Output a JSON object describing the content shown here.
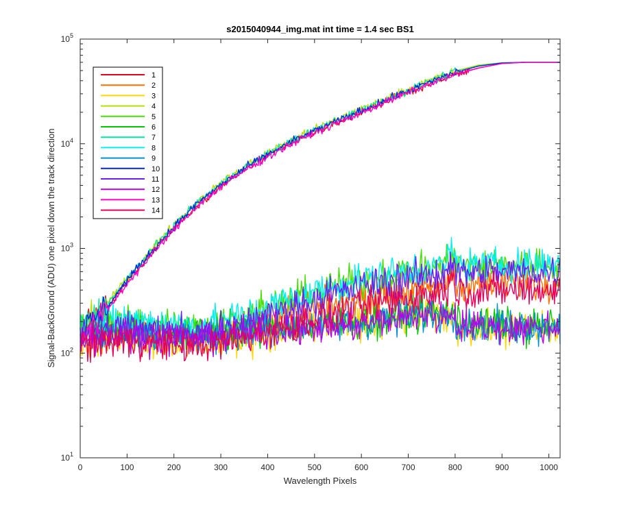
{
  "chart_data": {
    "type": "line",
    "title": "s2015040944_img.mat int time = 1.4 sec   BS1",
    "xlabel": "Wavelength Pixels",
    "ylabel": "Signal-BackGround (ADU) one pixel down the track direction",
    "xlim": [
      0,
      1024
    ],
    "ylim": [
      10,
      100000
    ],
    "yscale": "log",
    "x_ticks": [
      0,
      100,
      200,
      300,
      400,
      500,
      600,
      700,
      800,
      900,
      1000
    ],
    "y_ticks": [
      {
        "value": 10,
        "base": "10",
        "exp": "1"
      },
      {
        "value": 100,
        "base": "10",
        "exp": "2"
      },
      {
        "value": 1000,
        "base": "10",
        "exp": "3"
      },
      {
        "value": 10000,
        "base": "10",
        "exp": "4"
      },
      {
        "value": 100000,
        "base": "10",
        "exp": "5"
      }
    ],
    "grid": false,
    "legend_position": "top-left",
    "series": [
      {
        "name": "1",
        "color": "#e6001a",
        "group": "bright",
        "x": [
          0,
          50,
          100,
          150,
          200,
          250,
          300,
          350,
          400,
          450,
          500,
          550,
          600,
          650,
          700,
          750,
          800,
          850,
          900,
          950,
          1024
        ],
        "y": [
          150,
          240,
          480,
          880,
          1550,
          2600,
          3900,
          5600,
          7600,
          10000,
          12800,
          16000,
          20000,
          25000,
          31000,
          38000,
          46000,
          53000,
          58500,
          60000,
          60000
        ]
      },
      {
        "name": "2",
        "color": "#ff6f00",
        "group": "dim",
        "x": [
          0,
          50,
          100,
          150,
          200,
          250,
          300,
          350,
          400,
          450,
          500,
          550,
          600,
          650,
          700,
          750,
          800,
          850,
          900,
          950,
          1024
        ],
        "y": [
          140,
          150,
          150,
          150,
          140,
          140,
          150,
          170,
          200,
          230,
          260,
          290,
          320,
          360,
          390,
          420,
          440,
          460,
          470,
          470,
          480
        ]
      },
      {
        "name": "3",
        "color": "#ffd700",
        "group": "dim",
        "x": [
          0,
          50,
          100,
          150,
          200,
          250,
          300,
          350,
          400,
          450,
          500,
          550,
          600,
          650,
          700,
          750,
          800,
          850,
          900,
          950,
          1024
        ],
        "y": [
          130,
          140,
          140,
          130,
          125,
          120,
          130,
          140,
          150,
          160,
          170,
          175,
          185,
          200,
          215,
          235,
          180,
          175,
          170,
          170,
          165
        ]
      },
      {
        "name": "4",
        "color": "#b4e000",
        "group": "bright",
        "x": [
          0,
          50,
          100,
          150,
          200,
          250,
          300,
          350,
          400,
          450,
          500,
          550,
          600,
          650,
          700,
          750,
          800,
          850,
          900,
          950,
          1024
        ],
        "y": [
          170,
          270,
          520,
          950,
          1700,
          2800,
          4200,
          6000,
          8200,
          10800,
          13800,
          17200,
          21500,
          26800,
          33000,
          41000,
          49500,
          56500,
          59500,
          60000,
          60000
        ]
      },
      {
        "name": "5",
        "color": "#44e000",
        "group": "dim",
        "x": [
          0,
          50,
          100,
          150,
          200,
          250,
          300,
          350,
          400,
          450,
          500,
          550,
          600,
          650,
          700,
          750,
          800,
          850,
          900,
          950,
          1024
        ],
        "y": [
          190,
          200,
          200,
          195,
          185,
          180,
          195,
          225,
          270,
          320,
          380,
          440,
          500,
          560,
          610,
          650,
          680,
          690,
          700,
          700,
          700
        ]
      },
      {
        "name": "6",
        "color": "#00c800",
        "group": "dim",
        "x": [
          0,
          50,
          100,
          150,
          200,
          250,
          300,
          350,
          400,
          450,
          500,
          550,
          600,
          650,
          700,
          750,
          800,
          850,
          900,
          950,
          1024
        ],
        "y": [
          160,
          170,
          170,
          165,
          155,
          150,
          160,
          170,
          175,
          180,
          185,
          190,
          200,
          215,
          230,
          250,
          195,
          190,
          185,
          185,
          185
        ]
      },
      {
        "name": "7",
        "color": "#00e89a",
        "group": "bright",
        "x": [
          0,
          50,
          100,
          150,
          200,
          250,
          300,
          350,
          400,
          450,
          500,
          550,
          600,
          650,
          700,
          750,
          800,
          850,
          900,
          950,
          1024
        ],
        "y": [
          165,
          260,
          510,
          930,
          1650,
          2750,
          4100,
          5900,
          8000,
          10600,
          13500,
          16900,
          21000,
          26200,
          32300,
          40000,
          48500,
          55500,
          59200,
          60000,
          60000
        ]
      },
      {
        "name": "8",
        "color": "#00f0f0",
        "group": "dim",
        "x": [
          0,
          50,
          100,
          150,
          200,
          250,
          300,
          350,
          400,
          450,
          500,
          550,
          600,
          650,
          700,
          750,
          800,
          850,
          900,
          950,
          1024
        ],
        "y": [
          200,
          205,
          205,
          200,
          190,
          185,
          200,
          230,
          275,
          325,
          385,
          445,
          505,
          565,
          615,
          655,
          685,
          695,
          705,
          705,
          710
        ]
      },
      {
        "name": "9",
        "color": "#0090d0",
        "group": "dim",
        "x": [
          0,
          50,
          100,
          150,
          200,
          250,
          300,
          350,
          400,
          450,
          500,
          550,
          600,
          650,
          700,
          750,
          800,
          850,
          900,
          950,
          1024
        ],
        "y": [
          145,
          155,
          155,
          150,
          145,
          140,
          150,
          160,
          170,
          175,
          180,
          185,
          195,
          210,
          225,
          245,
          190,
          185,
          180,
          180,
          180
        ]
      },
      {
        "name": "10",
        "color": "#0028e0",
        "group": "bright",
        "x": [
          0,
          50,
          100,
          150,
          200,
          250,
          300,
          350,
          400,
          450,
          500,
          550,
          600,
          650,
          700,
          750,
          800,
          850,
          900,
          950,
          1024
        ],
        "y": [
          160,
          250,
          500,
          910,
          1620,
          2700,
          4050,
          5800,
          7900,
          10400,
          13300,
          16600,
          20700,
          25800,
          31900,
          39500,
          48000,
          55200,
          59100,
          60000,
          60000
        ]
      },
      {
        "name": "11",
        "color": "#6a1ef0",
        "group": "dim",
        "x": [
          0,
          50,
          100,
          150,
          200,
          250,
          300,
          350,
          400,
          450,
          500,
          550,
          600,
          650,
          700,
          750,
          800,
          850,
          900,
          950,
          1024
        ],
        "y": [
          160,
          170,
          170,
          165,
          155,
          150,
          165,
          190,
          230,
          275,
          325,
          380,
          430,
          480,
          520,
          555,
          580,
          590,
          600,
          600,
          600
        ]
      },
      {
        "name": "12",
        "color": "#b400e6",
        "group": "dim",
        "x": [
          0,
          50,
          100,
          150,
          200,
          250,
          300,
          350,
          400,
          450,
          500,
          550,
          600,
          650,
          700,
          750,
          800,
          850,
          900,
          950,
          1024
        ],
        "y": [
          140,
          150,
          150,
          145,
          140,
          135,
          145,
          155,
          165,
          170,
          175,
          180,
          190,
          205,
          220,
          240,
          185,
          180,
          175,
          175,
          175
        ]
      },
      {
        "name": "13",
        "color": "#ff00c8",
        "group": "bright",
        "x": [
          0,
          50,
          100,
          150,
          200,
          250,
          300,
          350,
          400,
          450,
          500,
          550,
          600,
          650,
          700,
          750,
          800,
          850,
          900,
          950,
          1024
        ],
        "y": [
          140,
          230,
          460,
          850,
          1500,
          2550,
          3850,
          5500,
          7500,
          9900,
          12700,
          15900,
          19900,
          24800,
          30800,
          37800,
          45500,
          52800,
          58300,
          60000,
          60000
        ]
      },
      {
        "name": "14",
        "color": "#e6005a",
        "group": "dim",
        "x": [
          0,
          50,
          100,
          150,
          200,
          250,
          300,
          350,
          400,
          450,
          500,
          550,
          600,
          650,
          700,
          750,
          800,
          850,
          900,
          950,
          1024
        ],
        "y": [
          120,
          130,
          130,
          125,
          120,
          115,
          125,
          140,
          160,
          185,
          215,
          245,
          275,
          310,
          340,
          365,
          385,
          395,
          400,
          400,
          405
        ]
      }
    ]
  }
}
